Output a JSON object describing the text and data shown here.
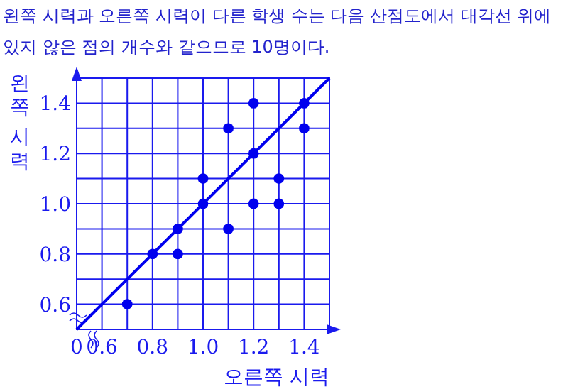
{
  "chart_data": {
    "type": "scatter",
    "title": "왼쪽 시력과 오른쪽 시력이 다른 학생 수는 다음 산점도에서 대각선 위에 있지 않은 점의 개수와 같으므로 10명이다.",
    "xlabel": "오른쪽 시력",
    "ylabel": "왼쪽 시력",
    "xlim": [
      0.5,
      1.5
    ],
    "ylim": [
      0.5,
      1.5
    ],
    "xticks": [
      {
        "value": 0.5,
        "label": "0"
      },
      0.6,
      {
        "value": 0.7,
        "label": null
      },
      0.8,
      {
        "value": 0.9,
        "label": null
      },
      {
        "value": 1,
        "label": "1.0"
      },
      {
        "value": 1.1,
        "label": null
      },
      1.2,
      {
        "value": 1.3,
        "label": null
      },
      1.4
    ],
    "yticks": [
      0.6,
      {
        "value": 0.7,
        "label": null
      },
      0.8,
      {
        "value": 0.9,
        "label": null
      },
      {
        "value": 1,
        "label": "1.0"
      },
      {
        "value": 1.1,
        "label": null
      },
      1.2,
      {
        "value": 1.3,
        "label": null
      },
      1.4
    ],
    "grid": true,
    "series": [
      {
        "type": "scatter",
        "marker": "circle",
        "color": "#0000ee",
        "x": [
          0.7,
          0.8,
          0.9,
          0.9,
          1.0,
          1.0,
          1.1,
          1.1,
          1.2,
          1.2,
          1.2,
          1.3,
          1.3,
          1.4,
          1.4
        ],
        "values": [
          0.6,
          0.8,
          0.9,
          0.8,
          1.0,
          1.1,
          1.3,
          0.9,
          1.4,
          1.2,
          1.0,
          1.1,
          1.0,
          1.4,
          1.3
        ]
      },
      {
        "type": "line",
        "color": "#0000ee",
        "x": [
          0.5,
          1.5
        ],
        "values": [
          0.5,
          1.5
        ]
      }
    ]
  }
}
